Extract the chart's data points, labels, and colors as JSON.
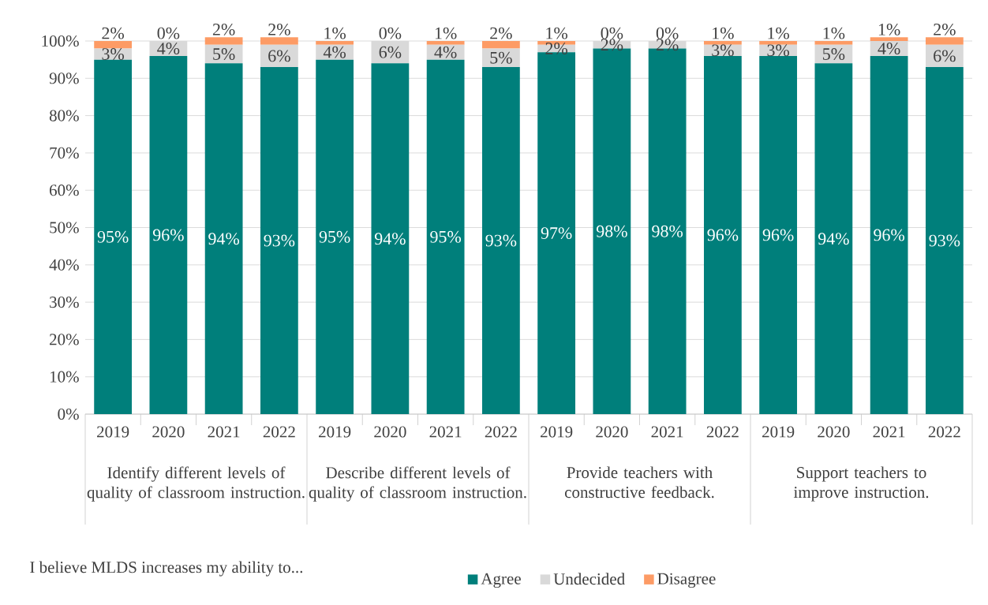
{
  "chart_data": {
    "type": "bar",
    "stacked": true,
    "grid": "y",
    "legend": "bottom",
    "categories": [
      "2019",
      "2020",
      "2021",
      "2022",
      "2019",
      "2020",
      "2021",
      "2022",
      "2019",
      "2020",
      "2021",
      "2022",
      "2019",
      "2020",
      "2021",
      "2022"
    ],
    "series": [
      {
        "name": "Agree",
        "color": "#007f7b",
        "values": [
          95,
          96,
          94,
          93,
          95,
          94,
          95,
          93,
          97,
          98,
          98,
          96,
          96,
          94,
          96,
          93
        ],
        "value_labels": [
          "95%",
          "96%",
          "94%",
          "93%",
          "95%",
          "94%",
          "95%",
          "93%",
          "97%",
          "98%",
          "98%",
          "96%",
          "96%",
          "94%",
          "96%",
          "93%"
        ]
      },
      {
        "name": "Undecided",
        "color": "#d9d9d9",
        "values": [
          3,
          4,
          5,
          6,
          4,
          6,
          4,
          5,
          2,
          2,
          2,
          3,
          3,
          5,
          4,
          6
        ],
        "value_labels": [
          "3%",
          "4%",
          "5%",
          "6%",
          "4%",
          "6%",
          "4%",
          "5%",
          "2%",
          "2%",
          "2%",
          "3%",
          "3%",
          "5%",
          "4%",
          "6%"
        ]
      },
      {
        "name": "Disagree",
        "color": "#fd9b65",
        "values": [
          2,
          0,
          2,
          2,
          1,
          0,
          1,
          2,
          1,
          0,
          0,
          1,
          1,
          1,
          1,
          2
        ],
        "value_labels": [
          "2%",
          "0%",
          "2%",
          "2%",
          "1%",
          "0%",
          "1%",
          "2%",
          "1%",
          "0%",
          "0%",
          "1%",
          "1%",
          "1%",
          "1%",
          "2%"
        ]
      }
    ],
    "ylim": [
      0,
      101
    ],
    "yticks": [
      {
        "value": 0,
        "label": "0%"
      },
      {
        "value": 10,
        "label": "10%"
      },
      {
        "value": 20,
        "label": "20%"
      },
      {
        "value": 30,
        "label": "30%"
      },
      {
        "value": 40,
        "label": "40%"
      },
      {
        "value": 50,
        "label": "50%"
      },
      {
        "value": 60,
        "label": "60%"
      },
      {
        "value": 70,
        "label": "70%"
      },
      {
        "value": 80,
        "label": "80%"
      },
      {
        "value": 90,
        "label": "90%"
      },
      {
        "value": 100,
        "label": "100%"
      }
    ],
    "annotations": [
      "Identify different levels of quality of classroom instruction.",
      "Describe different levels of quality of classroom instruction.",
      "Provide teachers with constructive feedback.",
      "Support teachers to improve instruction.",
      "I believe MLDS increases my ability to..."
    ]
  }
}
